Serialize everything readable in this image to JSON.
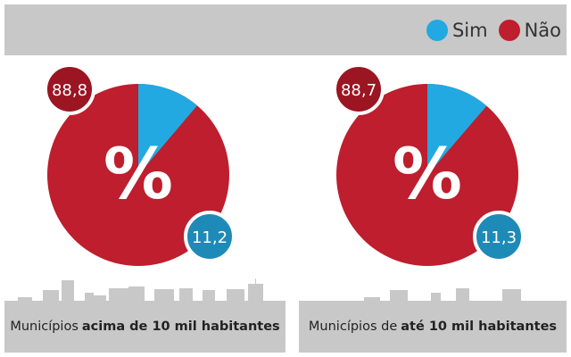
{
  "legend": [
    {
      "label": "Sim",
      "color": "#22a9e1"
    },
    {
      "label": "Não",
      "color": "#be1e2d"
    }
  ],
  "chart_data": [
    {
      "type": "pie",
      "center_label": "%",
      "categories": [
        "Sim",
        "Não"
      ],
      "values": [
        11.2,
        88.8
      ],
      "labels": [
        "11,2",
        "88,8"
      ],
      "caption_plain": "Municípios",
      "caption_bold": "acima de 10 mil habitantes"
    },
    {
      "type": "pie",
      "center_label": "%",
      "categories": [
        "Sim",
        "Não"
      ],
      "values": [
        11.3,
        88.7
      ],
      "labels": [
        "11,3",
        "88,7"
      ],
      "caption_plain": "Municípios de",
      "caption_bold": "até 10 mil habitantes"
    }
  ],
  "colors": {
    "sim": "#22a9e1",
    "nao": "#be1e2d",
    "sim_badge": "#1e8ab8",
    "nao_badge": "#9b1522",
    "panel": "#c8c8c8"
  }
}
